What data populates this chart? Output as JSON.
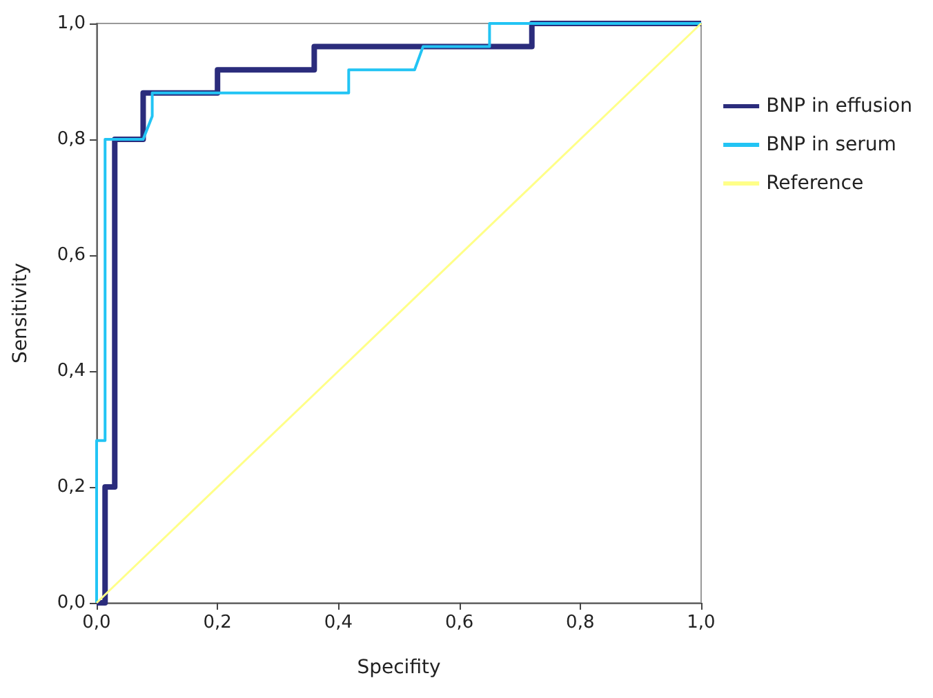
{
  "chart_data": {
    "type": "line",
    "xlabel": "Specifity",
    "ylabel": "Sensitivity",
    "xlim": [
      0,
      1
    ],
    "ylim": [
      0,
      1
    ],
    "xticks": [
      {
        "value": 0,
        "label": "0,0"
      },
      {
        "value": 0.2,
        "label": "0,2"
      },
      {
        "value": 0.4,
        "label": "0,4"
      },
      {
        "value": 0.6,
        "label": "0,6"
      },
      {
        "value": 0.8,
        "label": "0,8"
      },
      {
        "value": 1,
        "label": "1,0"
      }
    ],
    "yticks": [
      {
        "value": 0,
        "label": "0,0"
      },
      {
        "value": 0.2,
        "label": "0,2"
      },
      {
        "value": 0.4,
        "label": "0,4"
      },
      {
        "value": 0.6,
        "label": "0,6"
      },
      {
        "value": 0.8,
        "label": "0,8"
      },
      {
        "value": 1,
        "label": "1,0"
      }
    ],
    "series": [
      {
        "name": "BNP in effusion",
        "color": "#2b2c7c",
        "x": [
          0,
          0.014,
          0.014,
          0.03,
          0.03,
          0.077,
          0.077,
          0.2,
          0.2,
          0.36,
          0.36,
          0.72,
          0.72,
          1
        ],
        "values": [
          0,
          0,
          0.2,
          0.2,
          0.8,
          0.8,
          0.88,
          0.88,
          0.92,
          0.92,
          0.96,
          0.96,
          1,
          1
        ]
      },
      {
        "name": "BNP in serum",
        "color": "#22c4f4",
        "x": [
          0,
          0,
          0.014,
          0.014,
          0.077,
          0.092,
          0.092,
          0.417,
          0.417,
          0.526,
          0.54,
          0.65,
          0.65,
          1
        ],
        "values": [
          0,
          0.28,
          0.28,
          0.8,
          0.8,
          0.84,
          0.88,
          0.88,
          0.92,
          0.92,
          0.96,
          0.96,
          1,
          1
        ]
      },
      {
        "name": "Reference",
        "color": "#ffff88",
        "x": [
          0,
          1
        ],
        "values": [
          0,
          1
        ]
      }
    ],
    "grid": false,
    "legend": "right",
    "marker": "none",
    "line_style": "solid"
  }
}
